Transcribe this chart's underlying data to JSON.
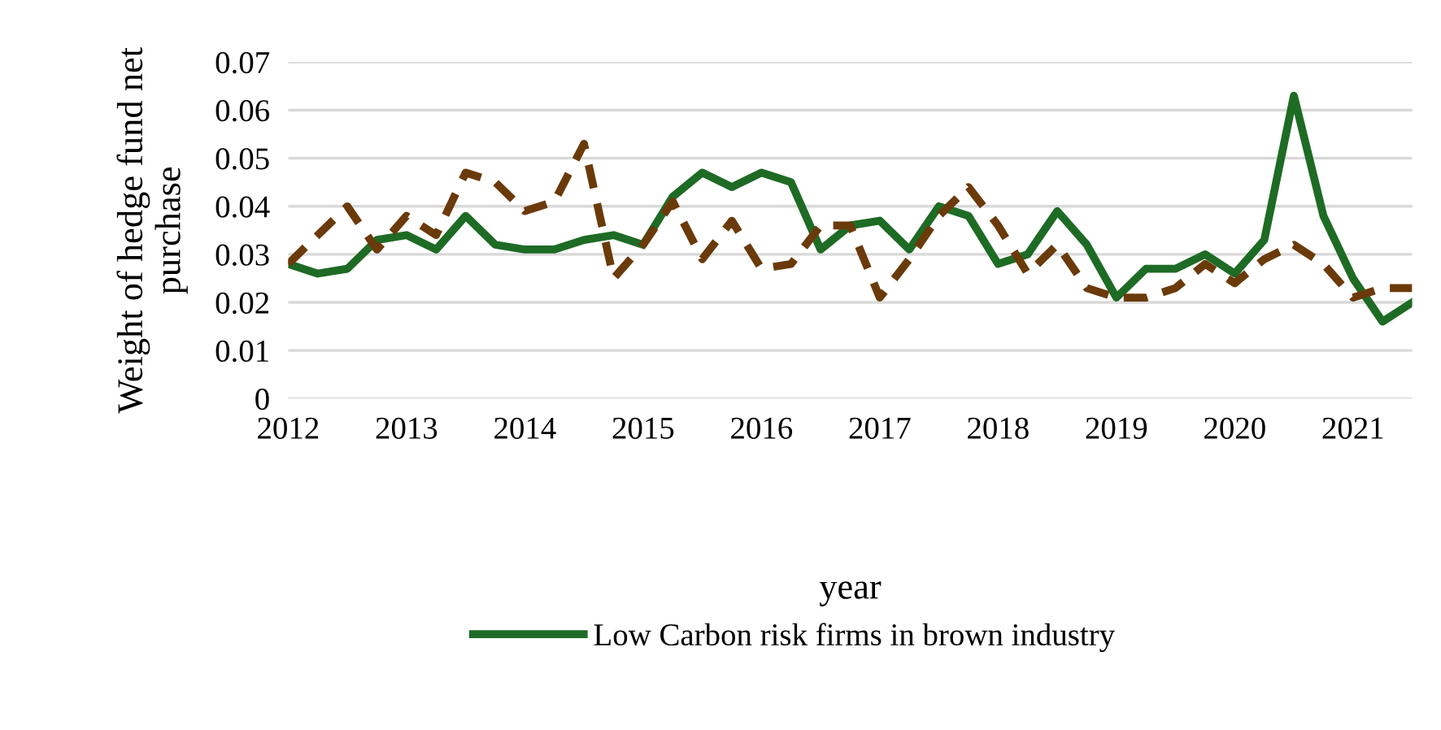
{
  "chart_data": {
    "type": "line",
    "xlabel": "year",
    "ylabel": "Weight of hedge fund net\npurchase",
    "categories": [
      "2012",
      null,
      null,
      null,
      "2013",
      null,
      null,
      null,
      "2014",
      null,
      null,
      null,
      "2015",
      null,
      null,
      null,
      "2016",
      null,
      null,
      null,
      "2017",
      null,
      null,
      null,
      "2018",
      null,
      null,
      null,
      "2019",
      null,
      null,
      null,
      "2020",
      null,
      null,
      null,
      "2021",
      null,
      null
    ],
    "series": [
      {
        "name": "Low Carbon risk firms in brown industry",
        "color": "#1e6b25",
        "line_style": "solid",
        "values": [
          0.028,
          0.026,
          0.027,
          0.033,
          0.034,
          0.031,
          0.038,
          0.032,
          0.031,
          0.031,
          0.033,
          0.034,
          0.032,
          0.042,
          0.047,
          0.044,
          0.047,
          0.045,
          0.031,
          0.036,
          0.037,
          0.031,
          0.04,
          0.038,
          0.028,
          0.03,
          0.039,
          0.032,
          0.021,
          0.027,
          0.027,
          0.03,
          0.026,
          0.033,
          0.063,
          0.038,
          0.025,
          0.016,
          0.02
        ]
      },
      {
        "color": "#6b3a0a",
        "line_style": "dashed",
        "values": [
          0.028,
          0.034,
          0.04,
          0.031,
          0.038,
          0.034,
          0.047,
          0.045,
          0.039,
          0.041,
          0.053,
          0.025,
          0.032,
          0.041,
          0.029,
          0.037,
          0.027,
          0.028,
          0.036,
          0.036,
          0.021,
          0.029,
          0.038,
          0.044,
          0.036,
          0.026,
          0.032,
          0.023,
          0.021,
          0.021,
          0.023,
          0.028,
          0.024,
          0.029,
          0.032,
          0.028,
          0.021,
          0.023,
          0.023
        ]
      }
    ],
    "ylim": [
      0,
      0.07
    ],
    "yticks": [
      0,
      0.01,
      0.02,
      0.03,
      0.04,
      0.05,
      0.06,
      0.07
    ],
    "grid": "y",
    "legend": "bottom"
  }
}
